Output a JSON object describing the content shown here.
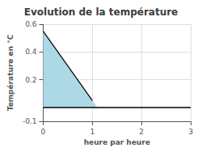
{
  "chart_data": {
    "type": "line",
    "title": "Evolution de la température",
    "xlabel": "heure par heure",
    "ylabel": "Température en °C",
    "xlim": [
      0,
      3
    ],
    "ylim": [
      -0.1,
      0.6
    ],
    "xticks": [
      0,
      1,
      2,
      3
    ],
    "yticks": [
      -0.1,
      0.2,
      0.4,
      0.6
    ],
    "grid": true,
    "baseline": 0.0,
    "series": [
      {
        "type": "line",
        "color": "#000000",
        "x": [
          0,
          1
        ],
        "values": [
          0.55,
          0.05
        ]
      },
      {
        "type": "area",
        "color": "#add8e6",
        "x": [
          0,
          0,
          1.1
        ],
        "values": [
          0.0,
          0.55,
          0.0
        ]
      }
    ]
  }
}
